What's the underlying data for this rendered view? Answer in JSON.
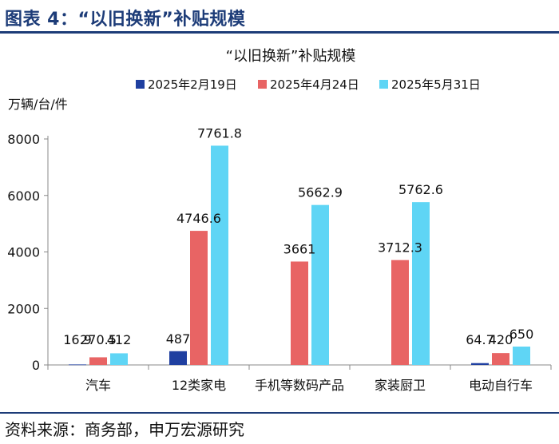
{
  "header": {
    "title": "图表 4：“以旧换新”补贴规模"
  },
  "footer": {
    "source": "资料来源：商务部，申万宏源研究"
  },
  "chart_data": {
    "type": "bar",
    "title": "“以旧换新”补贴规模",
    "ylabel": "万辆/台/件",
    "xlabel": "",
    "ylim": [
      0,
      8000
    ],
    "yticks": [
      0,
      2000,
      4000,
      6000,
      8000
    ],
    "ytick_labels": [
      "0",
      "2000",
      "4000",
      "6000",
      "8000"
    ],
    "legend_position": "top",
    "grid": false,
    "categories": [
      "汽车",
      "12类家电",
      "手机等数码产品",
      "家装厨卫",
      "电动自行车"
    ],
    "series": [
      {
        "name": "2025年2月19日",
        "color": "#1f3fa0",
        "values": [
          16.9,
          487,
          null,
          null,
          64.7
        ],
        "labels": [
          "16.9",
          "487",
          "",
          "",
          "64.7"
        ]
      },
      {
        "name": "2025年4月24日",
        "color": "#e86464",
        "values": [
          270.5,
          4746.6,
          3661,
          3712.3,
          420
        ],
        "labels": [
          "270.5",
          "4746.6",
          "3661",
          "3712.3",
          "420"
        ]
      },
      {
        "name": "2025年5月31日",
        "color": "#5fd5f5",
        "values": [
          412,
          7761.8,
          5662.9,
          5762.6,
          650
        ],
        "labels": [
          "412",
          "7761.8",
          "5662.9",
          "5762.6",
          "650"
        ]
      }
    ]
  }
}
